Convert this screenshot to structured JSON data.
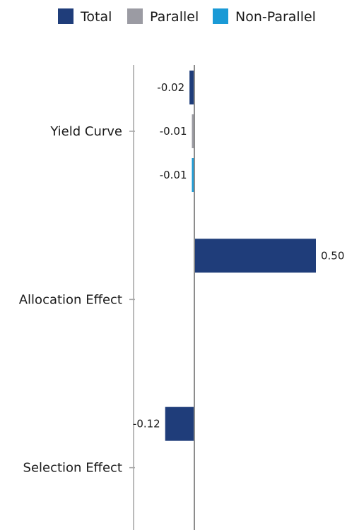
{
  "chart_data": {
    "type": "bar",
    "orientation": "horizontal",
    "categories": [
      "Yield Curve",
      "Allocation Effect",
      "Selection Effect"
    ],
    "series": [
      {
        "name": "Total",
        "color": "#1f3d7a",
        "values": [
          -0.02,
          0.5,
          -0.12
        ],
        "labels": [
          "-0.02",
          "0.50",
          "-0.12"
        ]
      },
      {
        "name": "Parallel",
        "color": "#9b9ba3",
        "values": [
          -0.01,
          null,
          null
        ],
        "labels": [
          "-0.01",
          "",
          ""
        ]
      },
      {
        "name": "Non-Parallel",
        "color": "#1a9ad6",
        "values": [
          -0.01,
          null,
          null
        ],
        "labels": [
          "-0.01",
          "",
          ""
        ]
      }
    ],
    "legend": "top",
    "grid": false,
    "xlim": [
      -0.25,
      0.62
    ]
  }
}
